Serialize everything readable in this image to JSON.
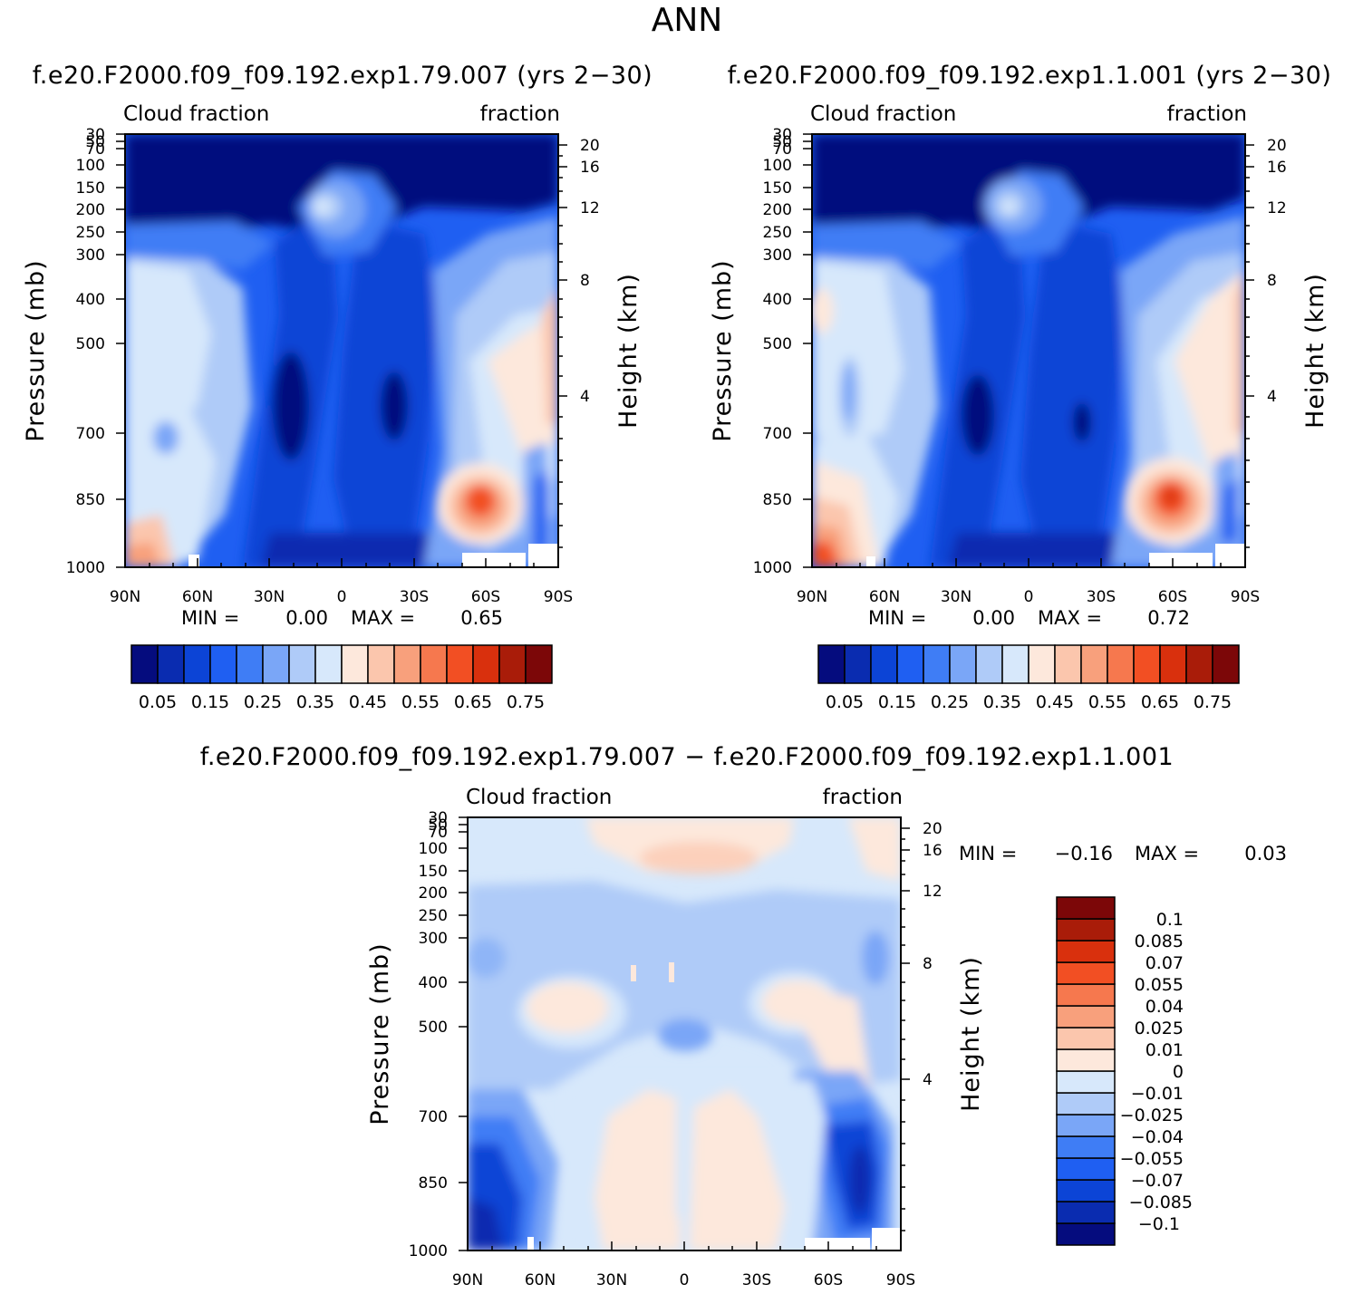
{
  "figure": {
    "title": "ANN",
    "diff_title": "f.e20.F2000.f09_f09.192.exp1.79.007 − f.e20.F2000.f09_f09.192.exp1.1.001"
  },
  "colors": {
    "abs_palette": [
      "#050c7e",
      "#0a2cb0",
      "#0c44d6",
      "#1f5ff2",
      "#3f7df5",
      "#7aa6f7",
      "#afcbf8",
      "#d7e8fb",
      "#fde8dc",
      "#fbc6ad",
      "#f8a07c",
      "#f6784e",
      "#f24f23",
      "#d9300d",
      "#a91c09",
      "#7c0708"
    ],
    "diff_palette": [
      "#050c7e",
      "#0a2cb0",
      "#0c44d6",
      "#1f5ff2",
      "#3f7df5",
      "#7aa6f7",
      "#afcbf8",
      "#d7e8fb",
      "#fde8dc",
      "#fbc6ad",
      "#f8a07c",
      "#f6784e",
      "#f24f23",
      "#d9300d",
      "#a91c09",
      "#7c0708"
    ]
  },
  "chart_data": [
    {
      "type": "heatmap",
      "name": "model case 1",
      "case_title": "f.e20.F2000.f09_f09.192.exp1.79.007 (yrs 2−30)",
      "left_title": "Cloud fraction",
      "right_title": "fraction",
      "xlabel": "",
      "ylabel": "Pressure (mb)",
      "ylabel2": "Height (km)",
      "x_ticks": [
        "90N",
        "60N",
        "30N",
        "0",
        "30S",
        "60S",
        "90S"
      ],
      "y_ticks": [
        "30",
        "50",
        "70",
        "100",
        "150",
        "200",
        "250",
        "300",
        "400",
        "500",
        "700",
        "850",
        "1000"
      ],
      "y2_ticks": [
        "20",
        "16",
        "12",
        "8",
        "4"
      ],
      "stats": {
        "min_label": "MIN =",
        "min": "0.00",
        "max_label": "MAX =",
        "max": "0.65"
      },
      "colorbar_labels": [
        "0.05",
        "0.15",
        "0.25",
        "0.35",
        "0.45",
        "0.55",
        "0.65",
        "0.75"
      ]
    },
    {
      "type": "heatmap",
      "name": "model case 2",
      "case_title": "f.e20.F2000.f09_f09.192.exp1.1.001 (yrs 2−30)",
      "left_title": "Cloud fraction",
      "right_title": "fraction",
      "xlabel": "",
      "ylabel": "Pressure (mb)",
      "ylabel2": "Height (km)",
      "x_ticks": [
        "90N",
        "60N",
        "30N",
        "0",
        "30S",
        "60S",
        "90S"
      ],
      "y_ticks": [
        "30",
        "50",
        "70",
        "100",
        "150",
        "200",
        "250",
        "300",
        "400",
        "500",
        "700",
        "850",
        "1000"
      ],
      "y2_ticks": [
        "20",
        "16",
        "12",
        "8",
        "4"
      ],
      "stats": {
        "min_label": "MIN =",
        "min": "0.00",
        "max_label": "MAX =",
        "max": "0.72"
      },
      "colorbar_labels": [
        "0.05",
        "0.15",
        "0.25",
        "0.35",
        "0.45",
        "0.55",
        "0.65",
        "0.75"
      ]
    },
    {
      "type": "heatmap",
      "name": "difference",
      "left_title": "Cloud fraction",
      "right_title": "fraction",
      "xlabel": "",
      "ylabel": "Pressure (mb)",
      "ylabel2": "Height (km)",
      "x_ticks": [
        "90N",
        "60N",
        "30N",
        "0",
        "30S",
        "60S",
        "90S"
      ],
      "y_ticks": [
        "30",
        "50",
        "70",
        "100",
        "150",
        "200",
        "250",
        "300",
        "400",
        "500",
        "700",
        "850",
        "1000"
      ],
      "y2_ticks": [
        "20",
        "16",
        "12",
        "8",
        "4"
      ],
      "stats": {
        "min_label": "MIN =",
        "min": "−0.16",
        "max_label": "MAX =",
        "max": "0.03"
      },
      "colorbar_labels": [
        "0.1",
        "0.085",
        "0.07",
        "0.055",
        "0.04",
        "0.025",
        "0.01",
        "0",
        "−0.01",
        "−0.025",
        "−0.04",
        "−0.055",
        "−0.07",
        "−0.085",
        "−0.1"
      ]
    }
  ]
}
